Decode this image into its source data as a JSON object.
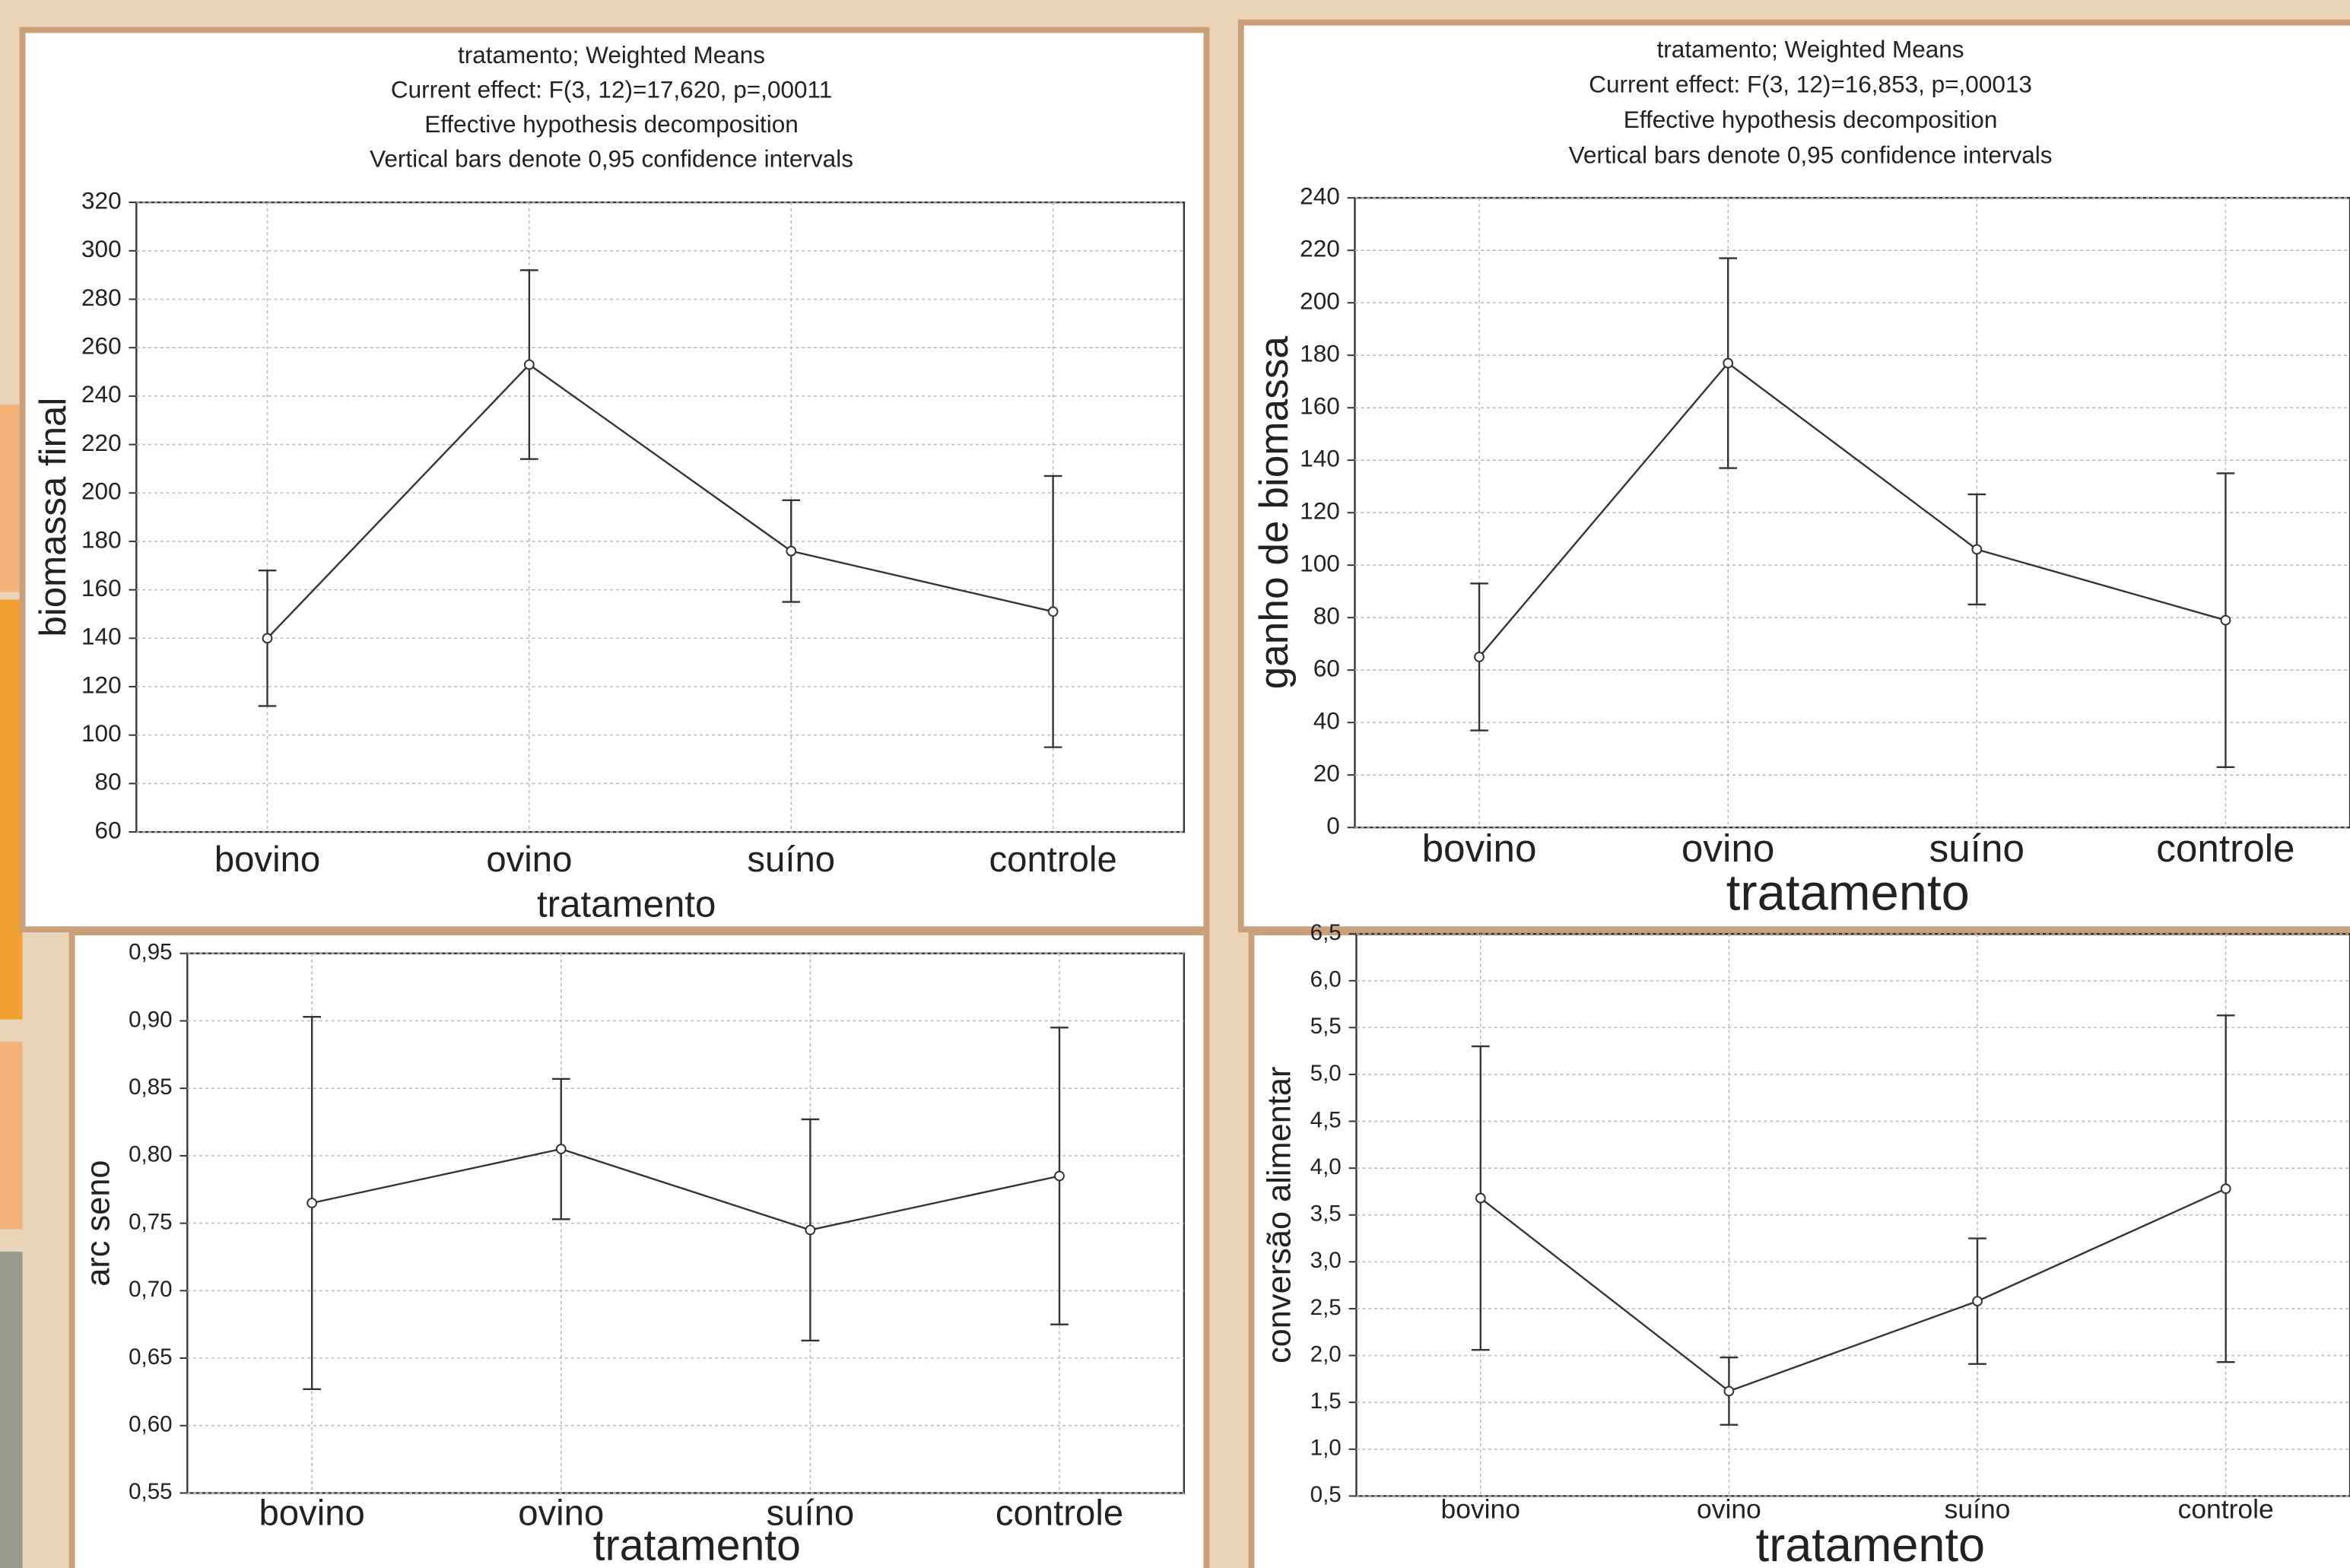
{
  "chart_data": [
    {
      "type": "line",
      "title": [
        "tratamento; Weighted Means",
        "Current effect: F(3, 12)=17,620, p=,00011",
        "Effective hypothesis decomposition",
        "Vertical bars denote 0,95 confidence intervals"
      ],
      "xlabel": "tratamento",
      "ylabel": "biomassa final",
      "categories": [
        "bovino",
        "ovino",
        "suíno",
        "controle"
      ],
      "values": [
        140,
        253,
        176,
        151
      ],
      "errors": [
        28,
        39,
        21,
        56
      ],
      "ylim": [
        60,
        320
      ],
      "yticks": [
        60,
        80,
        100,
        120,
        140,
        160,
        180,
        200,
        220,
        240,
        260,
        280,
        300,
        320
      ],
      "grid": true,
      "color": "#333333"
    },
    {
      "type": "line",
      "title": [
        "tratamento; Weighted Means",
        "Current effect: F(3, 12)=16,853, p=,00013",
        "Effective hypothesis decomposition",
        "Vertical bars denote 0,95 confidence intervals"
      ],
      "xlabel": "tratamento",
      "ylabel": "ganho de biomassa",
      "categories": [
        "bovino",
        "ovino",
        "suíno",
        "controle"
      ],
      "values": [
        65,
        177,
        106,
        79
      ],
      "errors": [
        28,
        40,
        21,
        56
      ],
      "ylim": [
        0,
        240
      ],
      "yticks": [
        0,
        20,
        40,
        60,
        80,
        100,
        120,
        140,
        160,
        180,
        200,
        220,
        240
      ],
      "grid": true,
      "color": "#333333"
    },
    {
      "type": "line",
      "xlabel": "tratamento",
      "ylabel": "arc seno",
      "categories": [
        "bovino",
        "ovino",
        "suíno",
        "controle"
      ],
      "values": [
        0.765,
        0.805,
        0.745,
        0.785
      ],
      "errors": [
        0.138,
        0.052,
        0.082,
        0.11
      ],
      "ylim": [
        0.55,
        0.95
      ],
      "yticks": [
        {
          "value": 0.55,
          "label": "0,55"
        },
        {
          "value": 0.6,
          "label": "0,60"
        },
        {
          "value": 0.65,
          "label": "0,65"
        },
        {
          "value": 0.7,
          "label": "0,70"
        },
        {
          "value": 0.75,
          "label": "0,75"
        },
        {
          "value": 0.8,
          "label": "0,80"
        },
        {
          "value": 0.85,
          "label": "0,85"
        },
        {
          "value": 0.9,
          "label": "0,90"
        },
        {
          "value": 0.95,
          "label": "0,95"
        }
      ],
      "grid": true,
      "color": "#333333"
    },
    {
      "type": "line",
      "xlabel": "tratamento",
      "ylabel": "conversão alimentar",
      "categories": [
        "bovino",
        "ovino",
        "suíno",
        "controle"
      ],
      "values": [
        3.68,
        1.62,
        2.58,
        3.78
      ],
      "errors": [
        1.62,
        0.36,
        0.67,
        1.85
      ],
      "ylim": [
        0.5,
        6.5
      ],
      "yticks": [
        {
          "value": 0.5,
          "label": "0,5"
        },
        {
          "value": 1,
          "label": "1,0"
        },
        {
          "value": 1.5,
          "label": "1,5"
        },
        {
          "value": 2,
          "label": "2,0"
        },
        {
          "value": 2.5,
          "label": "2,5"
        },
        {
          "value": 3,
          "label": "3,0"
        },
        {
          "value": 3.5,
          "label": "3,5"
        },
        {
          "value": 4,
          "label": "4,0"
        },
        {
          "value": 4.5,
          "label": "4,5"
        },
        {
          "value": 5,
          "label": "5,0"
        },
        {
          "value": 5.5,
          "label": "5,5"
        },
        {
          "value": 6,
          "label": "6,0"
        },
        {
          "value": 6.5,
          "label": "6,5"
        }
      ],
      "grid": true,
      "color": "#333333"
    }
  ]
}
